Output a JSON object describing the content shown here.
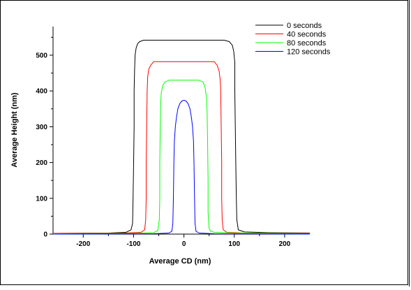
{
  "chart_data": {
    "type": "line",
    "title": "",
    "xlabel": "Average CD (nm)",
    "ylabel": "Average Height (nm)",
    "xlim": [
      -260,
      250
    ],
    "ylim": [
      0,
      580
    ],
    "x_ticks": [
      -200,
      -100,
      0,
      100,
      200
    ],
    "x_tick_labels": [
      "-200",
      "-100",
      "0",
      "100",
      "200"
    ],
    "y_ticks": [
      0,
      100,
      200,
      300,
      400,
      500
    ],
    "y_tick_labels": [
      "0",
      "100",
      "200",
      "300",
      "400",
      "500"
    ],
    "grid": false,
    "legend_position": "top-right",
    "series": [
      {
        "name": "0 seconds",
        "color": "#000000",
        "x": [
          -260,
          -150,
          -115,
          -105,
          -102,
          -101,
          -100,
          -99,
          -99,
          -98,
          -97,
          -95,
          -92,
          -88,
          -80,
          0,
          80,
          90,
          96,
          99,
          101,
          101,
          102,
          103,
          104,
          105,
          108,
          120,
          170,
          250
        ],
        "y": [
          2,
          3,
          5,
          12,
          30,
          100,
          200,
          300,
          400,
          460,
          500,
          520,
          532,
          538,
          542,
          542,
          542,
          538,
          528,
          510,
          480,
          400,
          300,
          200,
          100,
          40,
          12,
          6,
          4,
          3
        ]
      },
      {
        "name": "40 seconds",
        "color": "#ff0000",
        "x": [
          -260,
          -120,
          -85,
          -78,
          -76,
          -75,
          -75,
          -74,
          -73,
          -72,
          -70,
          -66,
          -60,
          0,
          60,
          66,
          70,
          72,
          73,
          74,
          75,
          75,
          76,
          78,
          85,
          120,
          250
        ],
        "y": [
          2,
          3,
          5,
          12,
          40,
          100,
          200,
          300,
          400,
          440,
          460,
          472,
          482,
          482,
          482,
          472,
          455,
          430,
          400,
          300,
          200,
          100,
          40,
          12,
          5,
          3,
          2
        ]
      },
      {
        "name": "80 seconds",
        "color": "#00ff00",
        "x": [
          -260,
          -100,
          -60,
          -52,
          -49,
          -48,
          -48,
          -47,
          -46,
          -45,
          -42,
          -38,
          -30,
          0,
          30,
          38,
          42,
          45,
          46,
          47,
          48,
          48,
          50,
          53,
          60,
          100,
          250
        ],
        "y": [
          1,
          2,
          4,
          10,
          40,
          100,
          200,
          300,
          370,
          395,
          415,
          425,
          430,
          430,
          430,
          425,
          410,
          380,
          340,
          260,
          150,
          60,
          15,
          8,
          5,
          3,
          1
        ]
      },
      {
        "name": "120 seconds",
        "color": "#0000ff",
        "x": [
          -260,
          -60,
          -30,
          -24,
          -22,
          -21,
          -20,
          -19,
          -17,
          -15,
          -12,
          -8,
          -4,
          0,
          4,
          8,
          12,
          15,
          17,
          19,
          20,
          21,
          22,
          24,
          30,
          60,
          250
        ],
        "y": [
          0,
          1,
          3,
          8,
          30,
          100,
          200,
          260,
          300,
          325,
          350,
          365,
          372,
          374,
          372,
          365,
          350,
          325,
          300,
          260,
          200,
          100,
          30,
          8,
          3,
          1,
          0
        ]
      }
    ]
  }
}
